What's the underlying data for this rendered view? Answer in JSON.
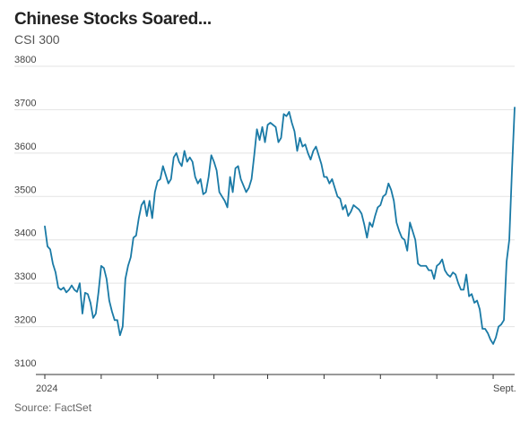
{
  "header": {
    "title": "Chinese Stocks Soared...",
    "subtitle": "CSI 300"
  },
  "footer": {
    "source": "Source: FactSet"
  },
  "colors": {
    "line": "#1a7aa6",
    "grid": "#e3e3e3",
    "axis": "#333333"
  },
  "chart_data": {
    "type": "line",
    "title": "Chinese Stocks Soared...",
    "subtitle": "CSI 300",
    "xlabel": "",
    "ylabel": "",
    "ylim": [
      3100,
      3800
    ],
    "yticks": [
      3100,
      3200,
      3300,
      3400,
      3500,
      3600,
      3700,
      3800
    ],
    "x_tick_labels": [
      {
        "label": "2024",
        "index": 0
      },
      {
        "label": "Sept.",
        "index": 171
      }
    ],
    "grid": true,
    "series": [
      {
        "name": "",
        "values": [
          3431,
          3385,
          3378,
          3345,
          3325,
          3290,
          3285,
          3290,
          3279,
          3285,
          3295,
          3285,
          3280,
          3300,
          3230,
          3278,
          3275,
          3255,
          3220,
          3230,
          3280,
          3340,
          3335,
          3310,
          3260,
          3235,
          3215,
          3215,
          3180,
          3200,
          3310,
          3340,
          3360,
          3405,
          3410,
          3450,
          3480,
          3490,
          3455,
          3490,
          3450,
          3510,
          3535,
          3540,
          3570,
          3550,
          3530,
          3540,
          3590,
          3600,
          3580,
          3570,
          3605,
          3580,
          3590,
          3580,
          3545,
          3530,
          3540,
          3505,
          3510,
          3545,
          3595,
          3580,
          3560,
          3510,
          3500,
          3490,
          3475,
          3545,
          3510,
          3565,
          3570,
          3540,
          3525,
          3510,
          3520,
          3540,
          3595,
          3655,
          3630,
          3660,
          3625,
          3665,
          3670,
          3665,
          3660,
          3625,
          3635,
          3690,
          3685,
          3695,
          3670,
          3650,
          3605,
          3635,
          3615,
          3620,
          3600,
          3585,
          3605,
          3615,
          3595,
          3575,
          3545,
          3545,
          3530,
          3540,
          3520,
          3500,
          3495,
          3470,
          3480,
          3455,
          3465,
          3480,
          3475,
          3470,
          3460,
          3435,
          3405,
          3440,
          3430,
          3455,
          3475,
          3480,
          3500,
          3505,
          3530,
          3515,
          3490,
          3440,
          3420,
          3405,
          3400,
          3375,
          3440,
          3420,
          3400,
          3345,
          3340,
          3340,
          3340,
          3330,
          3330,
          3310,
          3340,
          3345,
          3355,
          3330,
          3320,
          3315,
          3325,
          3320,
          3300,
          3285,
          3285,
          3320,
          3270,
          3275,
          3255,
          3260,
          3240,
          3195,
          3195,
          3185,
          3170,
          3160,
          3175,
          3200,
          3205,
          3215,
          3350,
          3400,
          3560,
          3705
        ]
      }
    ]
  }
}
